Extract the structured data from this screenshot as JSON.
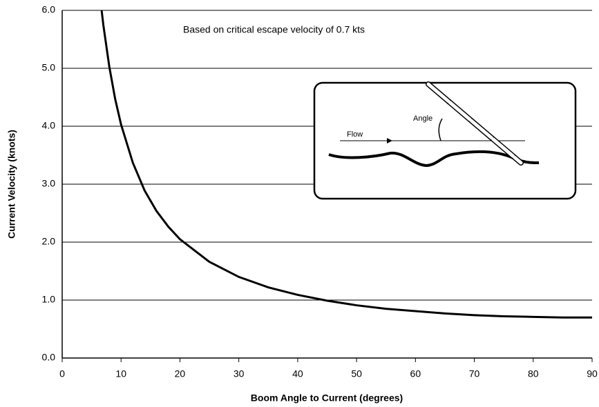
{
  "chart_data": {
    "type": "line",
    "annotation": "Based on critical escape velocity of 0.7 kts",
    "inset_labels": [
      "Flow",
      "Angle"
    ],
    "xlabel": "Boom Angle to Current (degrees)",
    "ylabel": "Current Velocity (knots)",
    "x": [
      6.7,
      7,
      8,
      9,
      10,
      12,
      14,
      16,
      18,
      20,
      25,
      30,
      35,
      40,
      45,
      50,
      55,
      60,
      65,
      70,
      75,
      80,
      85,
      90
    ],
    "values": [
      6.0,
      5.74,
      5.03,
      4.47,
      4.03,
      3.37,
      2.89,
      2.54,
      2.27,
      2.05,
      1.66,
      1.4,
      1.22,
      1.09,
      0.99,
      0.91,
      0.85,
      0.81,
      0.77,
      0.74,
      0.72,
      0.71,
      0.7,
      0.7
    ],
    "color": "#000000",
    "xlim": [
      0,
      90
    ],
    "ylim": [
      0,
      6
    ],
    "xticks": [
      0,
      10,
      20,
      30,
      40,
      50,
      60,
      70,
      80,
      90
    ],
    "yticks": [
      {
        "value": 0,
        "label": "0.0"
      },
      {
        "value": 1,
        "label": "1.0"
      },
      {
        "value": 2,
        "label": "2.0"
      },
      {
        "value": 3,
        "label": "3.0"
      },
      {
        "value": 4,
        "label": "4.0"
      },
      {
        "value": 5,
        "label": "5.0"
      },
      {
        "value": 6,
        "label": "6.0"
      }
    ],
    "grid": true
  }
}
